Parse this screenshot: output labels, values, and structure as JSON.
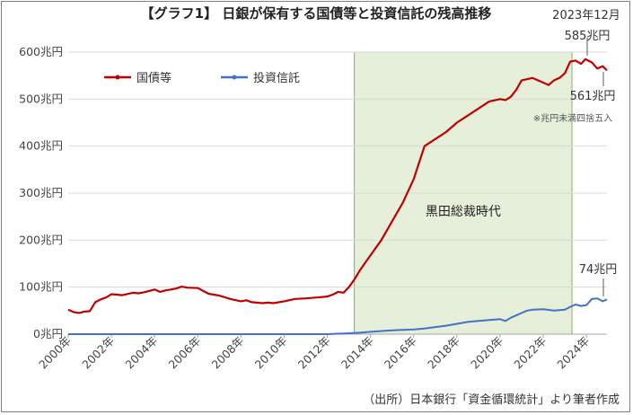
{
  "chart_data": {
    "type": "line",
    "title": "【グラフ1】 日銀が保有する国債等と投資信託の残高推移",
    "ylim": [
      0,
      600
    ],
    "y_ticks": [
      "0兆円",
      "100兆円",
      "200兆円",
      "300兆円",
      "400兆円",
      "500兆円",
      "600兆円"
    ],
    "x_range": [
      2000,
      2024.95
    ],
    "x_ticks": [
      "2000年",
      "2002年",
      "2004年",
      "2006年",
      "2008年",
      "2010年",
      "2012年",
      "2014年",
      "2016年",
      "2018年",
      "2020年",
      "2022年",
      "2024年"
    ],
    "grid": true,
    "legend_position": "top-left",
    "shaded_period": {
      "label": "黒田総裁時代",
      "start": 2013.25,
      "end": 2023.33,
      "color": "#e6efd9"
    },
    "series": [
      {
        "name": "国債等",
        "color": "#c00000",
        "x": [
          2000.0,
          2000.25,
          2000.5,
          2000.75,
          2001.0,
          2001.25,
          2001.5,
          2001.75,
          2002.0,
          2002.5,
          2003.0,
          2003.25,
          2003.5,
          2004.0,
          2004.25,
          2004.5,
          2004.75,
          2005.0,
          2005.25,
          2005.5,
          2006.0,
          2006.25,
          2006.5,
          2007.0,
          2007.5,
          2008.0,
          2008.25,
          2008.5,
          2009.0,
          2009.25,
          2009.5,
          2010.0,
          2010.5,
          2011.0,
          2011.5,
          2012.0,
          2012.25,
          2012.5,
          2012.75,
          2013.0,
          2013.25,
          2013.5,
          2013.75,
          2014.0,
          2014.5,
          2015.0,
          2015.5,
          2016.0,
          2016.5,
          2017.0,
          2017.5,
          2018.0,
          2018.5,
          2019.0,
          2019.5,
          2020.0,
          2020.25,
          2020.5,
          2020.75,
          2021.0,
          2021.5,
          2022.0,
          2022.25,
          2022.5,
          2022.75,
          2023.0,
          2023.25,
          2023.5,
          2023.75,
          2023.95,
          2024.25,
          2024.5,
          2024.75,
          2024.95
        ],
        "values": [
          52,
          47,
          45,
          48,
          49,
          68,
          74,
          78,
          85,
          83,
          88,
          87,
          89,
          95,
          90,
          93,
          95,
          97,
          101,
          99,
          98,
          92,
          86,
          82,
          75,
          70,
          72,
          68,
          66,
          67,
          66,
          70,
          75,
          76,
          78,
          80,
          84,
          90,
          88,
          100,
          116,
          135,
          152,
          168,
          200,
          240,
          280,
          330,
          400,
          415,
          430,
          450,
          465,
          480,
          495,
          500,
          498,
          505,
          520,
          540,
          545,
          535,
          530,
          540,
          545,
          555,
          580,
          582,
          575,
          585,
          578,
          565,
          570,
          561
        ]
      },
      {
        "name": "投資信託",
        "color": "#4472c4",
        "x": [
          2000.0,
          2012.0,
          2013.0,
          2013.5,
          2014.0,
          2015.0,
          2016.0,
          2016.5,
          2017.0,
          2017.5,
          2018.0,
          2018.5,
          2019.0,
          2019.5,
          2020.0,
          2020.25,
          2020.5,
          2020.75,
          2021.0,
          2021.25,
          2021.5,
          2022.0,
          2022.5,
          2023.0,
          2023.25,
          2023.5,
          2023.75,
          2024.0,
          2024.25,
          2024.5,
          2024.75,
          2024.95
        ],
        "values": [
          0,
          0,
          2,
          3,
          5,
          8,
          10,
          12,
          15,
          18,
          22,
          26,
          28,
          30,
          32,
          28,
          35,
          40,
          45,
          50,
          52,
          53,
          50,
          52,
          58,
          63,
          60,
          62,
          75,
          76,
          70,
          74
        ]
      }
    ],
    "annotations": {
      "date": "2023年12月",
      "peak_label": "585兆円",
      "end_label": "561兆円",
      "note": "※兆円未満四捨五入",
      "etf_label": "74兆円"
    },
    "source": "（出所）日本銀行「資金循環統計」より筆者作成"
  }
}
